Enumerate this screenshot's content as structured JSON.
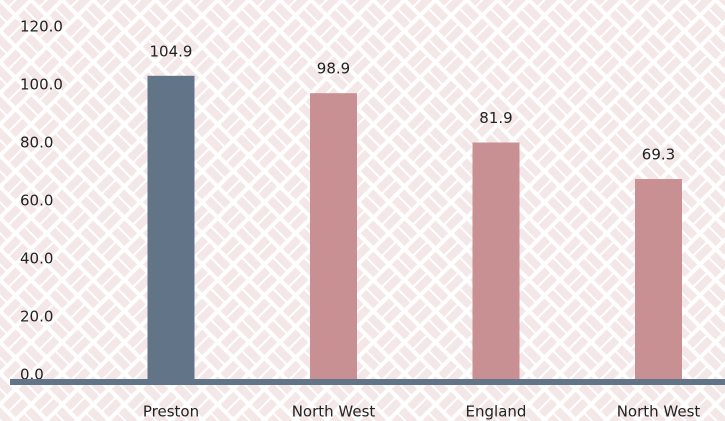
{
  "chart_data": {
    "type": "bar",
    "categories": [
      "Preston",
      "North West",
      "England",
      "North West"
    ],
    "values": [
      104.9,
      98.9,
      81.9,
      69.3
    ],
    "value_labels": [
      "104.9",
      "98.9",
      "81.9",
      "69.3"
    ],
    "colors": [
      "#627488",
      "#c89092",
      "#c89092",
      "#c89092"
    ],
    "ylim": [
      0,
      120
    ],
    "yticks": [
      {
        "value": 0,
        "label": "0.0"
      },
      {
        "value": 20,
        "label": "20.0"
      },
      {
        "value": 40,
        "label": "40.0"
      },
      {
        "value": 60,
        "label": "60.0"
      },
      {
        "value": 80,
        "label": "80.0"
      },
      {
        "value": 100,
        "label": "100.0"
      },
      {
        "value": 120,
        "label": "120.0"
      }
    ],
    "grid": false
  }
}
